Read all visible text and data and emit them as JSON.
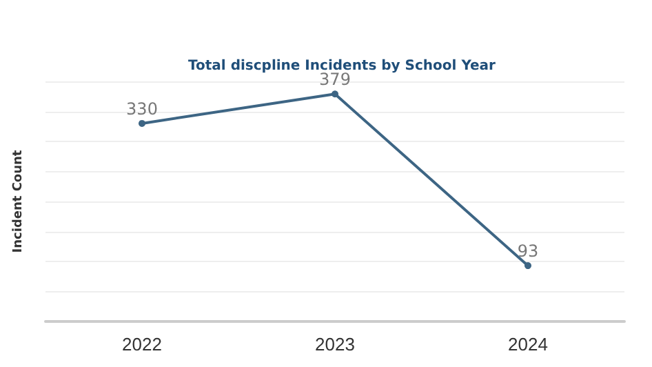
{
  "chart_data": {
    "type": "line",
    "title": "Total discpline Incidents by School Year",
    "ylabel": "Incident Count",
    "categories": [
      "2022",
      "2023",
      "2024"
    ],
    "series": [
      {
        "color": "#3d6584",
        "values": [
          330,
          379,
          93
        ]
      }
    ],
    "ylim": [
      0,
      400
    ],
    "yticks": [
      {
        "value": 0,
        "label": null
      },
      {
        "value": 50,
        "label": null
      },
      {
        "value": 100,
        "label": null
      },
      {
        "value": 150,
        "label": null
      },
      {
        "value": 200,
        "label": null
      },
      {
        "value": 250,
        "label": null
      },
      {
        "value": 300,
        "label": null
      },
      {
        "value": 350,
        "label": null
      },
      {
        "value": 400,
        "label": null
      }
    ],
    "tick_labels": "x",
    "grid": "y",
    "data_labels": true,
    "marker": "circle",
    "line_style": "solid"
  }
}
